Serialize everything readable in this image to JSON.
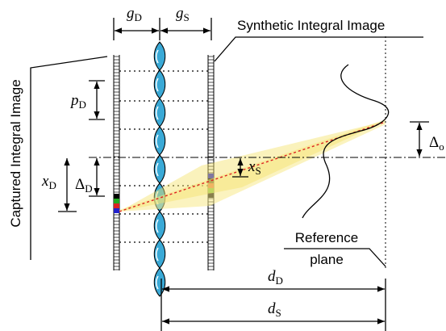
{
  "captions": {
    "synthetic": "Synthetic Integral Image",
    "captured": "Captured Integral Image",
    "reference_line1": "Reference",
    "reference_line2": "plane"
  },
  "symbols": {
    "gD": {
      "main": "g",
      "sub": "D"
    },
    "gS": {
      "main": "g",
      "sub": "S"
    },
    "pD": {
      "main": "p",
      "sub": "D"
    },
    "xD": {
      "main": "x",
      "sub": "D"
    },
    "deltaD": {
      "main": "Δ",
      "sub": "D"
    },
    "xS": {
      "main": "x",
      "sub": "S"
    },
    "deltaO": {
      "main": "Δ",
      "sub": "o"
    },
    "dD": {
      "main": "d",
      "sub": "D"
    },
    "dS": {
      "main": "d",
      "sub": "S"
    }
  }
}
